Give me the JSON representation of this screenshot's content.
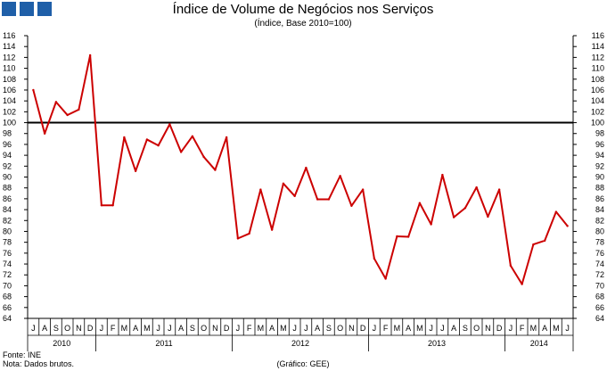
{
  "chart_data": {
    "type": "line",
    "title": "Índice de Volume de Negócios nos Serviços",
    "subtitle": "(Índice, Base 2010=100)",
    "xlabel": "",
    "ylabel": "",
    "ylim": [
      64,
      116
    ],
    "ystep": 2,
    "reference_line": 100,
    "line_color": "#cc0000",
    "reference_color": "#000000",
    "accent_squares_color": "#1f5fa8",
    "month_letters": [
      "J",
      "A",
      "S",
      "O",
      "N",
      "D",
      "J",
      "F",
      "M",
      "A",
      "M",
      "J",
      "J",
      "A",
      "S",
      "O",
      "N",
      "D",
      "J",
      "F",
      "M",
      "A",
      "M",
      "J",
      "J",
      "A",
      "S",
      "O",
      "N",
      "D",
      "J",
      "F",
      "M",
      "A",
      "M",
      "J",
      "J",
      "A",
      "S",
      "O",
      "N",
      "D",
      "J",
      "F",
      "M",
      "A",
      "M",
      "J"
    ],
    "years": [
      {
        "label": "2010",
        "start": 0,
        "count": 6
      },
      {
        "label": "2011",
        "start": 6,
        "count": 12
      },
      {
        "label": "2012",
        "start": 18,
        "count": 12
      },
      {
        "label": "2013",
        "start": 30,
        "count": 12
      },
      {
        "label": "2014",
        "start": 42,
        "count": 6
      }
    ],
    "series": [
      {
        "values": [
          106.0,
          98.0,
          103.8,
          101.4,
          102.4,
          112.4,
          84.8,
          84.8,
          97.3,
          91.1,
          96.9,
          95.8,
          99.7,
          94.6,
          97.5,
          93.7,
          91.3,
          97.3,
          78.7,
          79.6,
          87.7,
          80.3,
          88.8,
          86.5,
          91.7,
          85.9,
          85.9,
          90.2,
          84.7,
          87.7,
          75.0,
          71.3,
          79.1,
          79.0,
          85.2,
          81.3,
          90.4,
          82.6,
          84.3,
          88.1,
          82.7,
          87.7,
          73.7,
          70.3,
          77.6,
          78.3,
          83.6,
          81.0
        ]
      }
    ]
  },
  "footer": {
    "source": "Fonte: INE",
    "note": "Nota: Dados brutos.",
    "credit": "(Gráfico: GEE)"
  }
}
